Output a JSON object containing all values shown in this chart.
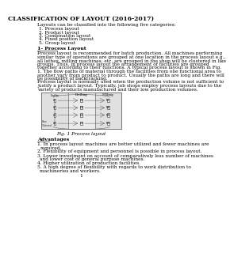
{
  "title": "CLASSIFICATION OF LAYOUT (2016-2017)",
  "intro": "Layouts can be classified into the following five categories:",
  "categories": [
    "1. Process layout",
    "2. Product layout",
    "3. Combination layout",
    "4. Fixed position layout",
    "5. Group layout"
  ],
  "section1_title": "1- Process Layout",
  "section1_body": [
    "Process layout is recommended for batch production. All machines performing",
    "similar type of operations are grouped at one location in the process layout e.g.,",
    "all lathes, milling machines, etc. are grouped in the shop will be clustered in like",
    "groups. Thus, in process layout the arrangement of facilities are grouped",
    "together according to their functions. A typical process layout is shown in Fig.",
    "1. The flow paths of material through the facilities from one functional area to",
    "another vary from product to product. Usually the paths are long and there will",
    "be possibility of backtracking.",
    "Process layout is normally used when the production volume is not sufficient to",
    "justify a product layout. Typically, job shops employ process layouts due to the",
    "variety of products manufactured and their low production volumes."
  ],
  "fig_caption": "Fig. 1 Process layout",
  "advantages_title": "Advantages",
  "advantages": [
    "1. In process layout machines are better utilized and fewer machines are required.",
    "2. Flexibility of equipment and personnel is possible in process layout.",
    "3. Lower investment on account of comparatively less number of machines and lower cost of general purpose machines.",
    "4. Higher utilization of production facilities.",
    "5. A high degree of flexibility with regards to work distribution to machineries and workers."
  ],
  "page_number": "1",
  "bg_color": "#ffffff",
  "text_color": "#000000",
  "title_fontsize": 5.5,
  "body_fontsize": 4.2,
  "bold_fontsize": 4.5,
  "diagram_sections": [
    "Lathe",
    "Drilling",
    "Milling"
  ],
  "diagram_machines": [
    [
      "L1",
      "L2",
      "L3",
      "L4"
    ],
    [
      "D1",
      "D2",
      "D3",
      "D4"
    ],
    [
      "M1",
      "M2",
      "M3",
      "M4"
    ]
  ]
}
